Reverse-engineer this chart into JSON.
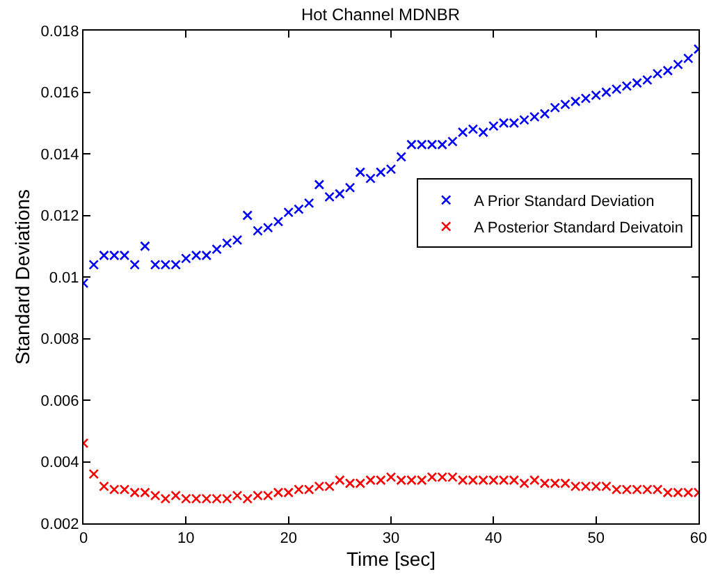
{
  "chart_data": {
    "type": "scatter",
    "title": "Hot Channel MDNBR",
    "xlabel": "Time [sec]",
    "ylabel": "Standard Deviations",
    "x": [
      0,
      1,
      2,
      3,
      4,
      5,
      6,
      7,
      8,
      9,
      10,
      11,
      12,
      13,
      14,
      15,
      16,
      17,
      18,
      19,
      20,
      21,
      22,
      23,
      24,
      25,
      26,
      27,
      28,
      29,
      30,
      31,
      32,
      33,
      34,
      35,
      36,
      37,
      38,
      39,
      40,
      41,
      42,
      43,
      44,
      45,
      46,
      47,
      48,
      49,
      50,
      51,
      52,
      53,
      54,
      55,
      56,
      57,
      58,
      59,
      60
    ],
    "series": [
      {
        "name": "A Prior Standard Deviation",
        "color": "#0000ff",
        "values": [
          0.0098,
          0.0104,
          0.0107,
          0.0107,
          0.0107,
          0.0104,
          0.011,
          0.0104,
          0.0104,
          0.0104,
          0.0106,
          0.0107,
          0.0107,
          0.0109,
          0.0111,
          0.0112,
          0.012,
          0.0115,
          0.0116,
          0.0118,
          0.0121,
          0.0122,
          0.0124,
          0.013,
          0.0126,
          0.0127,
          0.0129,
          0.0134,
          0.0132,
          0.0134,
          0.0135,
          0.0139,
          0.0143,
          0.0143,
          0.0143,
          0.0143,
          0.0144,
          0.0147,
          0.0148,
          0.0147,
          0.0149,
          0.015,
          0.015,
          0.0151,
          0.0152,
          0.0153,
          0.0155,
          0.0156,
          0.0157,
          0.0158,
          0.0159,
          0.016,
          0.0161,
          0.0162,
          0.0163,
          0.0164,
          0.0166,
          0.0167,
          0.0169,
          0.0171,
          0.0174
        ]
      },
      {
        "name": "A Posterior Standard Deivatoin",
        "color": "#ff0000",
        "values": [
          0.0046,
          0.0036,
          0.0032,
          0.0031,
          0.0031,
          0.003,
          0.003,
          0.0029,
          0.0028,
          0.0029,
          0.0028,
          0.0028,
          0.0028,
          0.0028,
          0.0028,
          0.0029,
          0.0028,
          0.0029,
          0.0029,
          0.003,
          0.003,
          0.0031,
          0.0031,
          0.0032,
          0.0032,
          0.0034,
          0.0033,
          0.0033,
          0.0034,
          0.0034,
          0.0035,
          0.0034,
          0.0034,
          0.0034,
          0.0035,
          0.0035,
          0.0035,
          0.0034,
          0.0034,
          0.0034,
          0.0034,
          0.0034,
          0.0034,
          0.0033,
          0.0034,
          0.0033,
          0.0033,
          0.0033,
          0.0032,
          0.0032,
          0.0032,
          0.0032,
          0.0031,
          0.0031,
          0.0031,
          0.0031,
          0.0031,
          0.003,
          0.003,
          0.003,
          0.003
        ]
      }
    ],
    "xlim": [
      0,
      60
    ],
    "xticks": [
      0,
      10,
      20,
      30,
      40,
      50,
      60
    ],
    "ylim": [
      0.002,
      0.018
    ],
    "yticks": [
      0.002,
      0.004,
      0.006,
      0.008,
      0.01,
      0.012,
      0.014,
      0.016,
      0.018
    ],
    "marker": "cross",
    "legend": "right"
  }
}
